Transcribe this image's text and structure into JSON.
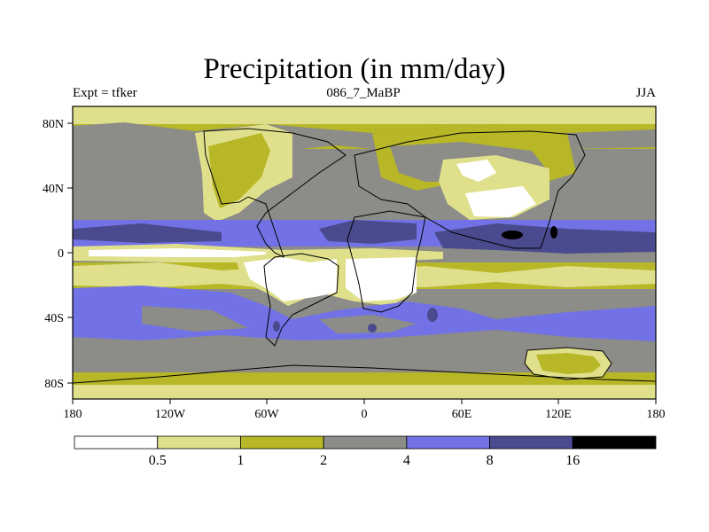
{
  "header": {
    "title": "Precipitation (in mm/day)",
    "left": "Expt = tfker",
    "center": "086_7_MaBP",
    "right": "JJA"
  },
  "axes": {
    "x_ticks": [
      "180",
      "120W",
      "60W",
      "0",
      "60E",
      "120E",
      "180"
    ],
    "y_ticks": [
      "80N",
      "40N",
      "0",
      "40S",
      "80S"
    ]
  },
  "legend": {
    "boundaries": [
      "0.5",
      "1",
      "2",
      "4",
      "8",
      "16"
    ],
    "colors": [
      "#ffffff",
      "#e0e08c",
      "#b7b728",
      "#8c8c88",
      "#7272e6",
      "#4a4a8e",
      "#000000"
    ]
  },
  "colors": {
    "background": "#ffffff",
    "very_low": "#ffffff",
    "low": "#e0e08c",
    "low_mid": "#b7b728",
    "mid": "#8c8c88",
    "high": "#7272e6",
    "very_high": "#4a4a8e",
    "extreme": "#000000"
  }
}
